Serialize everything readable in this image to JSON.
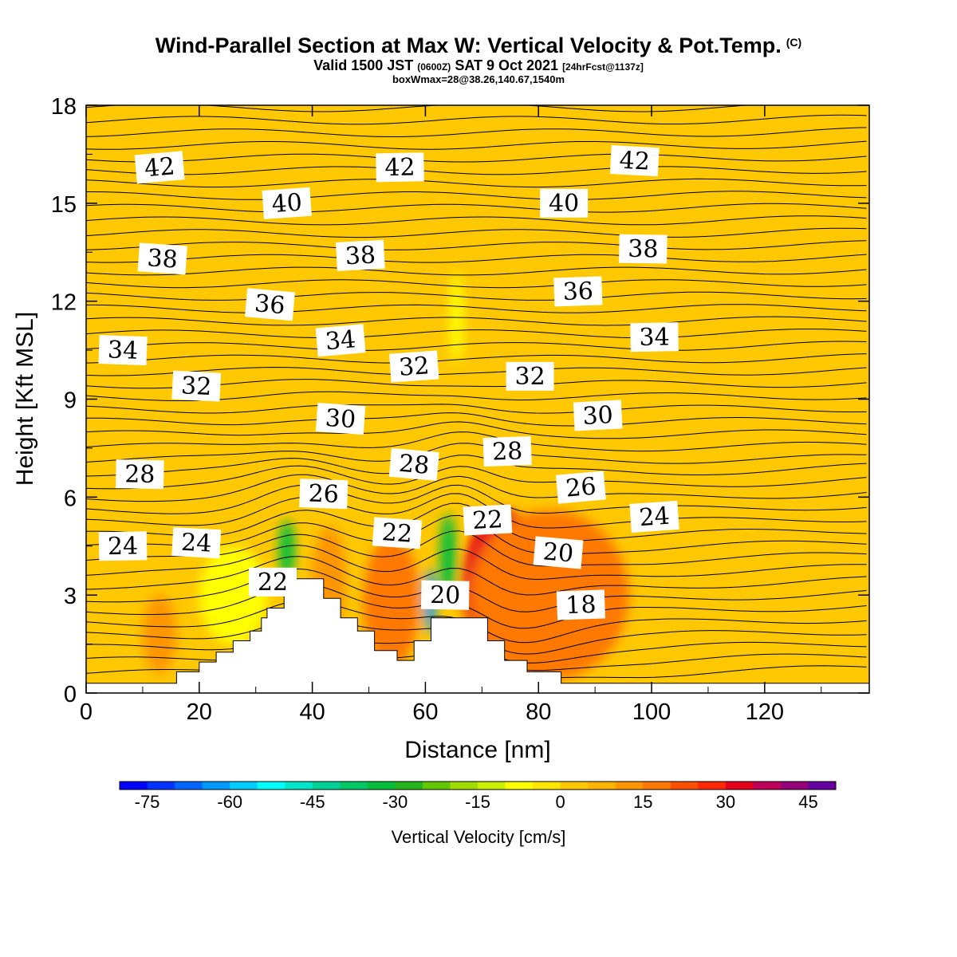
{
  "title": {
    "main": "Wind-Parallel Section at Max W: Vertical Velocity & Pot.Temp.",
    "copyright": "(C)",
    "valid_prefix": "Valid 1500 JST",
    "valid_utc": "(0600Z)",
    "valid_date": "SAT 9 Oct 2021",
    "forecast": "[24hrFcst@1137z]",
    "box_info": "boxWmax=28@38.26,140.67,1540m"
  },
  "chart_data": {
    "type": "heatmap",
    "xlabel": "Distance [nm]",
    "ylabel": "Height [Kft MSL]",
    "xlim": [
      0,
      138.5
    ],
    "ylim": [
      0,
      18
    ],
    "x_ticks": [
      0,
      20,
      40,
      60,
      80,
      100,
      120
    ],
    "y_ticks": [
      0,
      3,
      6,
      9,
      12,
      15,
      18
    ],
    "terrain_profile": [
      [
        0,
        0.3
      ],
      [
        16,
        0.3
      ],
      [
        16,
        0.65
      ],
      [
        20,
        0.65
      ],
      [
        20,
        0.95
      ],
      [
        23,
        0.95
      ],
      [
        23,
        1.25
      ],
      [
        26,
        1.25
      ],
      [
        26,
        1.6
      ],
      [
        29,
        1.6
      ],
      [
        29,
        1.9
      ],
      [
        31,
        1.9
      ],
      [
        31,
        2.3
      ],
      [
        32,
        2.3
      ],
      [
        32,
        2.6
      ],
      [
        35,
        2.6
      ],
      [
        35,
        3.5
      ],
      [
        42,
        3.5
      ],
      [
        42,
        2.9
      ],
      [
        45,
        2.9
      ],
      [
        45,
        2.3
      ],
      [
        48,
        2.3
      ],
      [
        48,
        1.9
      ],
      [
        51,
        1.9
      ],
      [
        51,
        1.3
      ],
      [
        55,
        1.3
      ],
      [
        55,
        1.0
      ],
      [
        58,
        1.0
      ],
      [
        58,
        1.6
      ],
      [
        61,
        1.6
      ],
      [
        61,
        2.3
      ],
      [
        71,
        2.3
      ],
      [
        71,
        1.6
      ],
      [
        74,
        1.6
      ],
      [
        74,
        1.0
      ],
      [
        78,
        1.0
      ],
      [
        78,
        0.65
      ],
      [
        84,
        0.65
      ],
      [
        84,
        0.3
      ],
      [
        138.5,
        0.3
      ]
    ],
    "theta_contours": {
      "unit": "deg",
      "labels": [
        {
          "value": "42",
          "x": 13,
          "y": 16.1
        },
        {
          "value": "42",
          "x": 55.5,
          "y": 16.1
        },
        {
          "value": "42",
          "x": 97,
          "y": 16.3
        },
        {
          "value": "40",
          "x": 35.5,
          "y": 15.0
        },
        {
          "value": "40",
          "x": 84.5,
          "y": 15.0
        },
        {
          "value": "38",
          "x": 13.5,
          "y": 13.3
        },
        {
          "value": "38",
          "x": 48.5,
          "y": 13.4
        },
        {
          "value": "38",
          "x": 98.5,
          "y": 13.6
        },
        {
          "value": "36",
          "x": 32.5,
          "y": 11.9
        },
        {
          "value": "36",
          "x": 87,
          "y": 12.3
        },
        {
          "value": "34",
          "x": 6.5,
          "y": 10.5
        },
        {
          "value": "34",
          "x": 45,
          "y": 10.8
        },
        {
          "value": "34",
          "x": 100.5,
          "y": 10.9
        },
        {
          "value": "32",
          "x": 19.5,
          "y": 9.4
        },
        {
          "value": "32",
          "x": 58,
          "y": 10.0
        },
        {
          "value": "32",
          "x": 78.5,
          "y": 9.7
        },
        {
          "value": "30",
          "x": 45,
          "y": 8.4
        },
        {
          "value": "30",
          "x": 90.5,
          "y": 8.5
        },
        {
          "value": "28",
          "x": 9.5,
          "y": 6.7
        },
        {
          "value": "28",
          "x": 58,
          "y": 7.0
        },
        {
          "value": "28",
          "x": 74.5,
          "y": 7.4
        },
        {
          "value": "26",
          "x": 42,
          "y": 6.1
        },
        {
          "value": "26",
          "x": 87.5,
          "y": 6.3
        },
        {
          "value": "24",
          "x": 6.5,
          "y": 4.5
        },
        {
          "value": "24",
          "x": 19.5,
          "y": 4.6
        },
        {
          "value": "24",
          "x": 100.5,
          "y": 5.4
        },
        {
          "value": "22",
          "x": 33,
          "y": 3.4
        },
        {
          "value": "22",
          "x": 55,
          "y": 4.9
        },
        {
          "value": "22",
          "x": 71,
          "y": 5.3
        },
        {
          "value": "20",
          "x": 63.5,
          "y": 3.0
        },
        {
          "value": "20",
          "x": 83.5,
          "y": 4.3
        },
        {
          "value": "18",
          "x": 87.5,
          "y": 2.7
        }
      ]
    },
    "w_field_blobs": [
      {
        "x": 72,
        "y": 3.6,
        "rx": 4,
        "ry": 1.7,
        "value": 48
      },
      {
        "x": 74,
        "y": 3.3,
        "rx": 7.5,
        "ry": 2.3,
        "value": 30
      },
      {
        "x": 82,
        "y": 3.0,
        "rx": 14,
        "ry": 2.6,
        "value": 18
      },
      {
        "x": 54,
        "y": 2.8,
        "rx": 5,
        "ry": 2.0,
        "value": 15
      },
      {
        "x": 43,
        "y": 3.5,
        "rx": 3,
        "ry": 1.6,
        "value": 10
      },
      {
        "x": 13,
        "y": 1.8,
        "rx": 3,
        "ry": 1.2,
        "value": 10
      },
      {
        "x": 26,
        "y": 3.0,
        "rx": 6,
        "ry": 1.5,
        "value": -10
      },
      {
        "x": 64,
        "y": 4.2,
        "rx": 1.4,
        "ry": 1.3,
        "value": -35
      },
      {
        "x": 60.8,
        "y": 2.8,
        "rx": 1.0,
        "ry": 1.0,
        "value": -65
      },
      {
        "x": 35.5,
        "y": 4.4,
        "rx": 1.4,
        "ry": 0.9,
        "value": -35
      },
      {
        "x": 65.5,
        "y": 11.5,
        "rx": 1.2,
        "ry": 1.4,
        "value": -10
      }
    ],
    "colorbar": {
      "label": "Vertical Velocity [cm/s]",
      "ticks": [
        "-75",
        "-60",
        "-45",
        "-30",
        "-15",
        "0",
        "15",
        "30",
        "45"
      ],
      "min": -80,
      "max": 50,
      "colors": [
        "#0000ff",
        "#0033ff",
        "#0066ff",
        "#0099ff",
        "#00ccff",
        "#00ffff",
        "#00e6c8",
        "#00d296",
        "#00c864",
        "#00be3c",
        "#28b41e",
        "#64c800",
        "#a0dc00",
        "#c8f000",
        "#ffff00",
        "#ffe600",
        "#ffc800",
        "#ffb400",
        "#ff9600",
        "#ff7800",
        "#ff5000",
        "#ff2800",
        "#e6001e",
        "#be005a",
        "#960078",
        "#6400a0"
      ]
    }
  }
}
